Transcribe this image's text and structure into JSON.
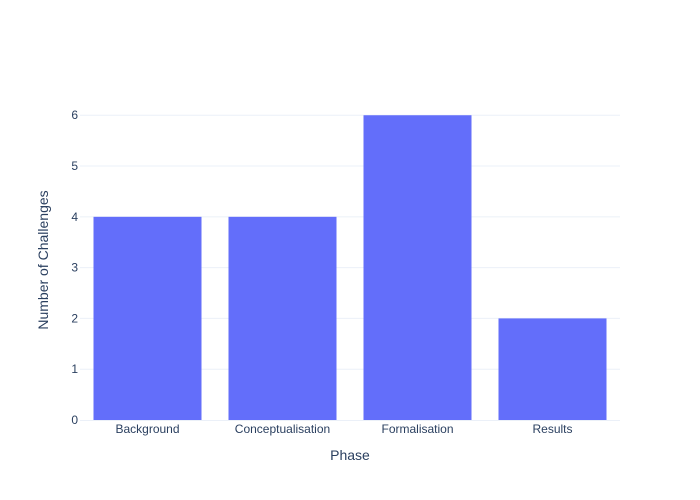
{
  "chart_data": {
    "type": "bar",
    "categories": [
      "Background",
      "Conceptualisation",
      "Formalisation",
      "Results"
    ],
    "values": [
      4,
      4,
      6,
      2
    ],
    "xlabel": "Phase",
    "ylabel": "Number of Challenges",
    "ylim": [
      0,
      6.3
    ],
    "yticks": [
      0,
      1,
      2,
      3,
      4,
      5,
      6
    ],
    "bar_color": "#636efa",
    "grid_color": "#ebf0f8",
    "text_color": "#2a3f5f",
    "grid": true
  }
}
